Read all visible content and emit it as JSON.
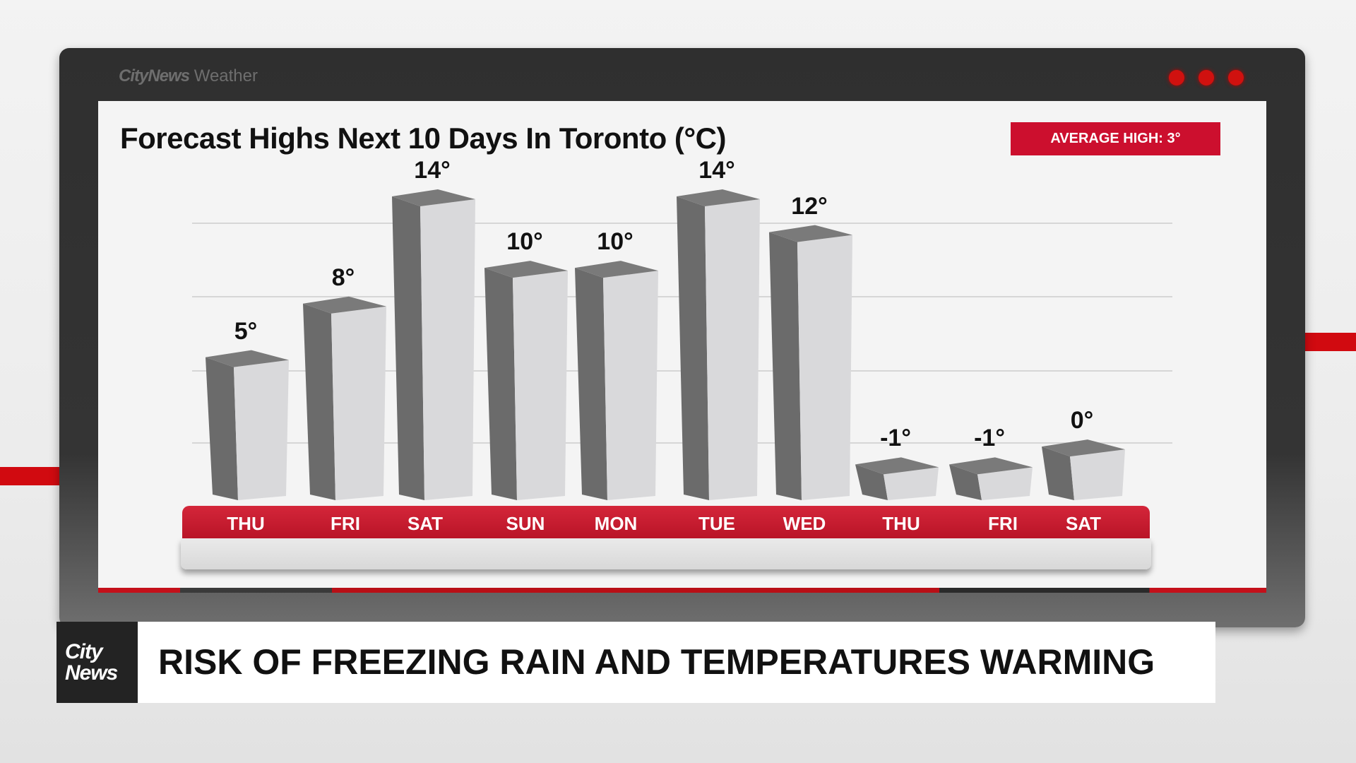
{
  "frame": {
    "brand_bold": "CityNews",
    "brand_light": "Weather",
    "dot_color": "#d0110f"
  },
  "badge": {
    "label": "AVERAGE HIGH: 3°",
    "color": "#cc0f2e"
  },
  "lower_third": {
    "logo_line1": "City",
    "logo_line2": "News",
    "headline": "RISK OF FREEZING RAIN AND TEMPERATURES WARMING"
  },
  "chart_data": {
    "type": "bar",
    "title": "Forecast Highs Next 10 Days In Toronto (°C)",
    "xlabel": "",
    "ylabel": "",
    "categories": [
      "THU",
      "FRI",
      "SAT",
      "SUN",
      "MON",
      "TUE",
      "WED",
      "THU",
      "FRI",
      "SAT"
    ],
    "values": [
      5,
      8,
      14,
      10,
      10,
      14,
      12,
      -1,
      -1,
      0
    ],
    "value_labels": [
      "5°",
      "8°",
      "14°",
      "10°",
      "10°",
      "14°",
      "12°",
      "-1°",
      "-1°",
      "0°"
    ],
    "unit": "°C",
    "ylim": [
      -3,
      14
    ],
    "grid": true,
    "annotation": "AVERAGE HIGH: 3°",
    "bar_color_front": "#d9d9db",
    "bar_color_side": "#6b6b6b",
    "axis_band_color": "#c8192f"
  }
}
